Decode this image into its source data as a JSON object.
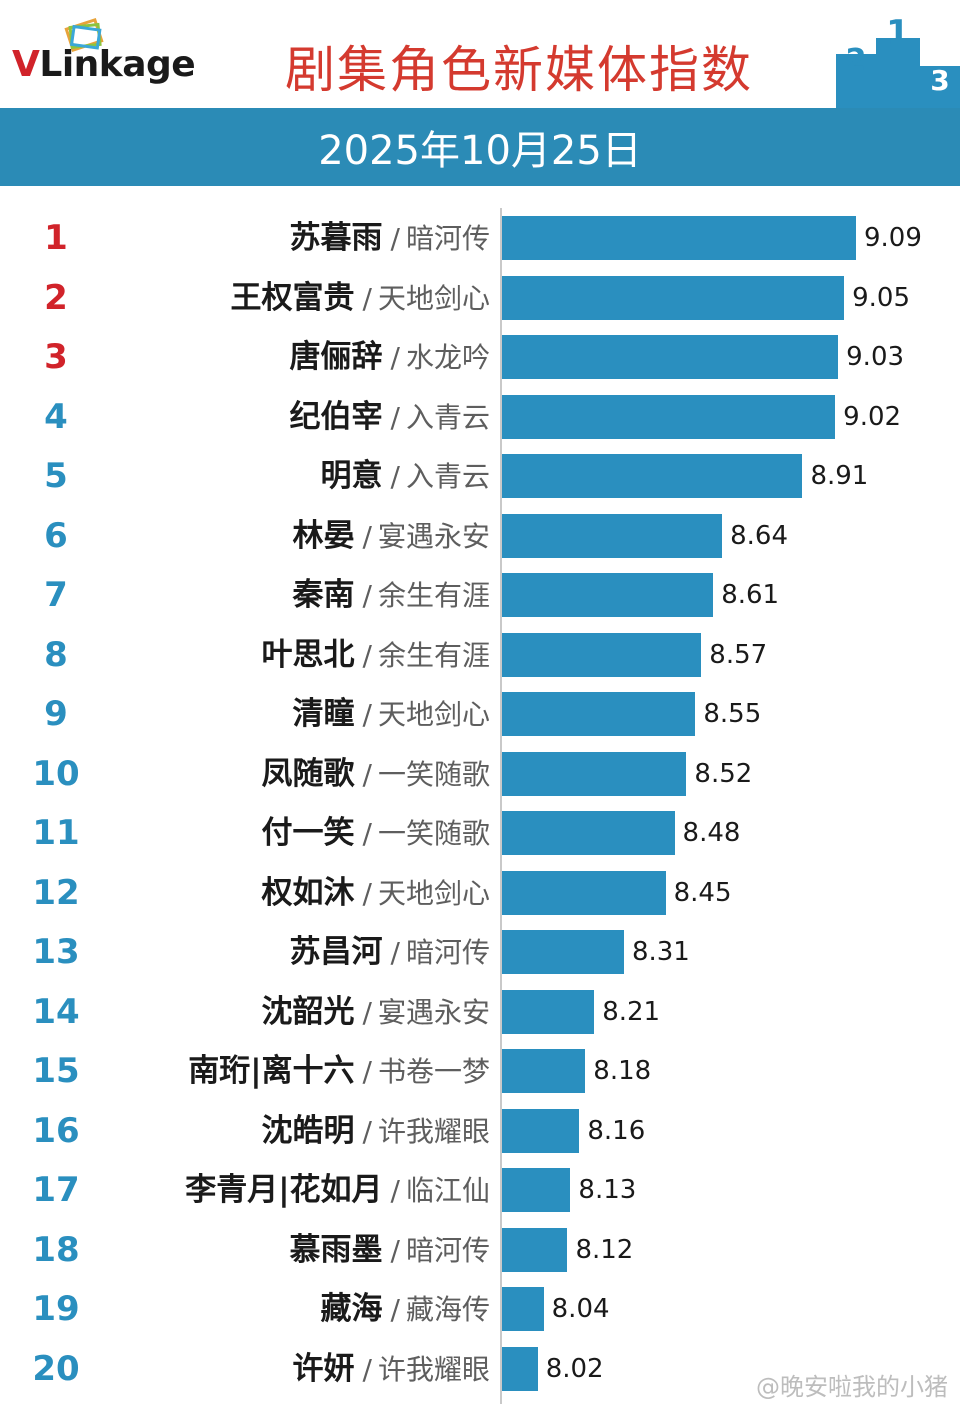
{
  "header": {
    "logo_text": "VLinkage",
    "title": "剧集角色新媒体指数",
    "podium_numbers": [
      "2",
      "1",
      "3"
    ]
  },
  "date": "2025年10月25日",
  "watermark": "@晚安啦我的小猪",
  "colors": {
    "bar": "#2a8fbf",
    "band": "#2b8bb6",
    "title": "#d43a2f",
    "rank_top": "#d1232a",
    "rank_rest": "#2a8fbf"
  },
  "chart_data": {
    "type": "bar",
    "orientation": "horizontal",
    "title": "剧集角色新媒体指数",
    "subtitle": "2025年10月25日",
    "xlim": [
      7.9,
      9.15
    ],
    "categories": [
      {
        "rank": "1",
        "role": "苏暮雨",
        "show": "暗河传",
        "value": 9.09
      },
      {
        "rank": "2",
        "role": "王权富贵",
        "show": "天地剑心",
        "value": 9.05
      },
      {
        "rank": "3",
        "role": "唐俪辞",
        "show": "水龙吟",
        "value": 9.03
      },
      {
        "rank": "4",
        "role": "纪伯宰",
        "show": "入青云",
        "value": 9.02
      },
      {
        "rank": "5",
        "role": "明意",
        "show": "入青云",
        "value": 8.91
      },
      {
        "rank": "6",
        "role": "林晏",
        "show": "宴遇永安",
        "value": 8.64
      },
      {
        "rank": "7",
        "role": "秦南",
        "show": "余生有涯",
        "value": 8.61
      },
      {
        "rank": "8",
        "role": "叶思北",
        "show": "余生有涯",
        "value": 8.57
      },
      {
        "rank": "9",
        "role": "清瞳",
        "show": "天地剑心",
        "value": 8.55
      },
      {
        "rank": "10",
        "role": "凤随歌",
        "show": "一笑随歌",
        "value": 8.52
      },
      {
        "rank": "11",
        "role": "付一笑",
        "show": "一笑随歌",
        "value": 8.48
      },
      {
        "rank": "12",
        "role": "权如沐",
        "show": "天地剑心",
        "value": 8.45
      },
      {
        "rank": "13",
        "role": "苏昌河",
        "show": "暗河传",
        "value": 8.31
      },
      {
        "rank": "14",
        "role": "沈韶光",
        "show": "宴遇永安",
        "value": 8.21
      },
      {
        "rank": "15",
        "role": "南珩|离十六",
        "show": "书卷一梦",
        "value": 8.18
      },
      {
        "rank": "16",
        "role": "沈皓明",
        "show": "许我耀眼",
        "value": 8.16
      },
      {
        "rank": "17",
        "role": "李青月|花如月",
        "show": "临江仙",
        "value": 8.13
      },
      {
        "rank": "18",
        "role": "慕雨墨",
        "show": "暗河传",
        "value": 8.12
      },
      {
        "rank": "19",
        "role": "藏海",
        "show": "藏海传",
        "value": 8.04
      },
      {
        "rank": "20",
        "role": "许妍",
        "show": "许我耀眼",
        "value": 8.02
      }
    ]
  }
}
